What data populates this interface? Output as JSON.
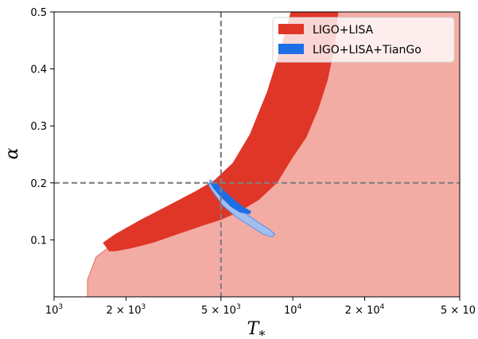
{
  "chart_data": {
    "type": "contour",
    "xlabel": "T_*",
    "ylabel": "α",
    "x_scale": "log",
    "xlim": [
      1000,
      50000
    ],
    "ylim": [
      0.0,
      0.5
    ],
    "x_ticks": [
      {
        "value": 1000,
        "label": "10",
        "sup": "3"
      },
      {
        "value": 2000,
        "label": "2 × 10",
        "sup": "3"
      },
      {
        "value": 5000,
        "label": "5 × 10",
        "sup": "3"
      },
      {
        "value": 10000,
        "label": "10",
        "sup": "4"
      },
      {
        "value": 20000,
        "label": "2 × 10",
        "sup": "4"
      },
      {
        "value": 50000,
        "label": "5 × 10",
        "sup": ""
      }
    ],
    "y_ticks": [
      {
        "value": 0.1,
        "label": "0.1"
      },
      {
        "value": 0.2,
        "label": "0.2"
      },
      {
        "value": 0.3,
        "label": "0.3"
      },
      {
        "value": 0.4,
        "label": "0.4"
      },
      {
        "value": 0.5,
        "label": "0.5"
      }
    ],
    "reference_lines": {
      "x": 5000,
      "y": 0.2,
      "style": "dashed",
      "color": "#808080"
    },
    "legend": {
      "position": "top-right",
      "entries": [
        {
          "name": "LIGO+LISA",
          "color": "#e03628"
        },
        {
          "name": "LIGO+LISA+TianGo",
          "color": "#1e6ee6"
        }
      ]
    },
    "series": [
      {
        "name": "LIGO+LISA",
        "color_inner": "#e03628",
        "color_outer": "#f2aca4",
        "outer_region": [
          [
            1380,
            0.03
          ],
          [
            1500,
            0.07
          ],
          [
            1800,
            0.095
          ],
          [
            2400,
            0.125
          ],
          [
            3200,
            0.155
          ],
          [
            4200,
            0.185
          ],
          [
            5000,
            0.205
          ],
          [
            6000,
            0.245
          ],
          [
            7200,
            0.31
          ],
          [
            8500,
            0.39
          ],
          [
            9500,
            0.45
          ],
          [
            10500,
            0.5
          ],
          [
            50000,
            0.5
          ],
          [
            50000,
            0.0
          ],
          [
            1380,
            0.0
          ]
        ],
        "inner_region": [
          [
            1700,
            0.08
          ],
          [
            1600,
            0.095
          ],
          [
            1800,
            0.11
          ],
          [
            2300,
            0.135
          ],
          [
            3000,
            0.16
          ],
          [
            3900,
            0.185
          ],
          [
            4700,
            0.205
          ],
          [
            5600,
            0.235
          ],
          [
            6600,
            0.285
          ],
          [
            7800,
            0.36
          ],
          [
            8800,
            0.43
          ],
          [
            9800,
            0.5
          ],
          [
            15500,
            0.5
          ],
          [
            15000,
            0.44
          ],
          [
            14000,
            0.38
          ],
          [
            12800,
            0.33
          ],
          [
            11400,
            0.28
          ],
          [
            10000,
            0.245
          ],
          [
            8600,
            0.2
          ],
          [
            7200,
            0.17
          ],
          [
            6000,
            0.15
          ],
          [
            5000,
            0.135
          ],
          [
            4200,
            0.125
          ],
          [
            3300,
            0.11
          ],
          [
            2600,
            0.095
          ],
          [
            2100,
            0.085
          ],
          [
            1800,
            0.08
          ]
        ]
      },
      {
        "name": "LIGO+LISA+TianGo",
        "color_inner": "#1e6ee6",
        "color_outer": "#a2bff0",
        "outer_region": [
          [
            4500,
            0.205
          ],
          [
            4700,
            0.2
          ],
          [
            5100,
            0.185
          ],
          [
            5700,
            0.165
          ],
          [
            6400,
            0.145
          ],
          [
            7200,
            0.13
          ],
          [
            8000,
            0.118
          ],
          [
            8400,
            0.11
          ],
          [
            8200,
            0.105
          ],
          [
            7500,
            0.11
          ],
          [
            6600,
            0.125
          ],
          [
            5800,
            0.14
          ],
          [
            5100,
            0.16
          ],
          [
            4700,
            0.18
          ],
          [
            4450,
            0.195
          ]
        ],
        "inner_region": [
          [
            4500,
            0.2
          ],
          [
            4800,
            0.2
          ],
          [
            5200,
            0.185
          ],
          [
            5700,
            0.17
          ],
          [
            6200,
            0.158
          ],
          [
            6700,
            0.15
          ],
          [
            6600,
            0.145
          ],
          [
            6000,
            0.148
          ],
          [
            5500,
            0.158
          ],
          [
            5000,
            0.175
          ],
          [
            4650,
            0.19
          ]
        ]
      }
    ]
  }
}
